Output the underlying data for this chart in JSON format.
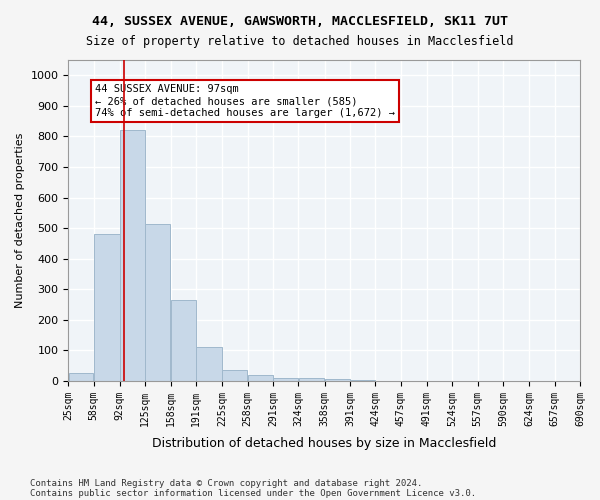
{
  "title1": "44, SUSSEX AVENUE, GAWSWORTH, MACCLESFIELD, SK11 7UT",
  "title2": "Size of property relative to detached houses in Macclesfield",
  "xlabel": "Distribution of detached houses by size in Macclesfield",
  "ylabel": "Number of detached properties",
  "footnote1": "Contains HM Land Registry data © Crown copyright and database right 2024.",
  "footnote2": "Contains public sector information licensed under the Open Government Licence v3.0.",
  "bar_color": "#c8d8e8",
  "bar_edge_color": "#a0b8cc",
  "background_color": "#f0f4f8",
  "grid_color": "#ffffff",
  "vline_color": "#cc0000",
  "vline_x": 97,
  "annotation_text": "44 SUSSEX AVENUE: 97sqm\n← 26% of detached houses are smaller (585)\n74% of semi-detached houses are larger (1,672) →",
  "annotation_box_color": "#ffffff",
  "annotation_box_edge": "#cc0000",
  "bin_edges": [
    25,
    58,
    92,
    125,
    158,
    191,
    225,
    258,
    291,
    324,
    358,
    391,
    424,
    457,
    491,
    524,
    557,
    590,
    624,
    657,
    690
  ],
  "bin_values": [
    25,
    480,
    820,
    515,
    265,
    110,
    35,
    18,
    10,
    8,
    5,
    2,
    1,
    0,
    0,
    0,
    0,
    0,
    0,
    0
  ],
  "ylim": [
    0,
    1050
  ],
  "yticks": [
    0,
    100,
    200,
    300,
    400,
    500,
    600,
    700,
    800,
    900,
    1000
  ],
  "tick_labels": [
    "25sqm",
    "58sqm",
    "92sqm",
    "125sqm",
    "158sqm",
    "191sqm",
    "225sqm",
    "258sqm",
    "291sqm",
    "324sqm",
    "358sqm",
    "391sqm",
    "424sqm",
    "457sqm",
    "491sqm",
    "524sqm",
    "557sqm",
    "590sqm",
    "624sqm",
    "657sqm",
    "690sqm"
  ]
}
